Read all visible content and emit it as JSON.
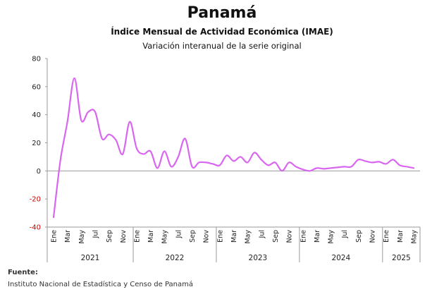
{
  "header": {
    "title": "Panamá",
    "subtitle": "Índice Mensual de Actividad Económica (IMAE)",
    "subtitle2": "Variación interanual de la serie original"
  },
  "footer": {
    "source_label": "Fuente:",
    "source_text": "Instituto Nacional de Estadística y Censo de Panamá"
  },
  "chart_data": {
    "type": "line",
    "title": "Panamá",
    "subtitle": "Variación interanual de la serie original",
    "ylim": [
      -40,
      80
    ],
    "yticks": [
      -40,
      -20,
      0,
      20,
      40,
      60,
      80
    ],
    "negative_tick_color": "#cc0000",
    "grid": false,
    "line_color": "#d966f0",
    "month_tick_labels": [
      "Ene",
      "Mar",
      "May",
      "Jul",
      "Sep",
      "Nov"
    ],
    "years": [
      "2021",
      "2022",
      "2023",
      "2024",
      "2025"
    ],
    "x_start": "2021-01",
    "series": [
      {
        "values": [
          -33,
          8,
          35,
          66,
          36,
          42,
          42,
          23,
          26,
          22,
          12,
          35,
          16,
          12,
          14,
          2,
          14,
          3,
          10,
          23,
          3,
          6,
          6,
          5,
          4,
          11,
          7,
          10,
          6,
          13,
          8,
          4,
          6,
          0,
          6,
          3,
          1,
          0,
          2,
          1.5,
          2,
          2.5,
          3,
          3,
          8,
          7,
          6,
          6.5,
          5,
          8,
          4,
          3,
          2
        ]
      }
    ]
  }
}
